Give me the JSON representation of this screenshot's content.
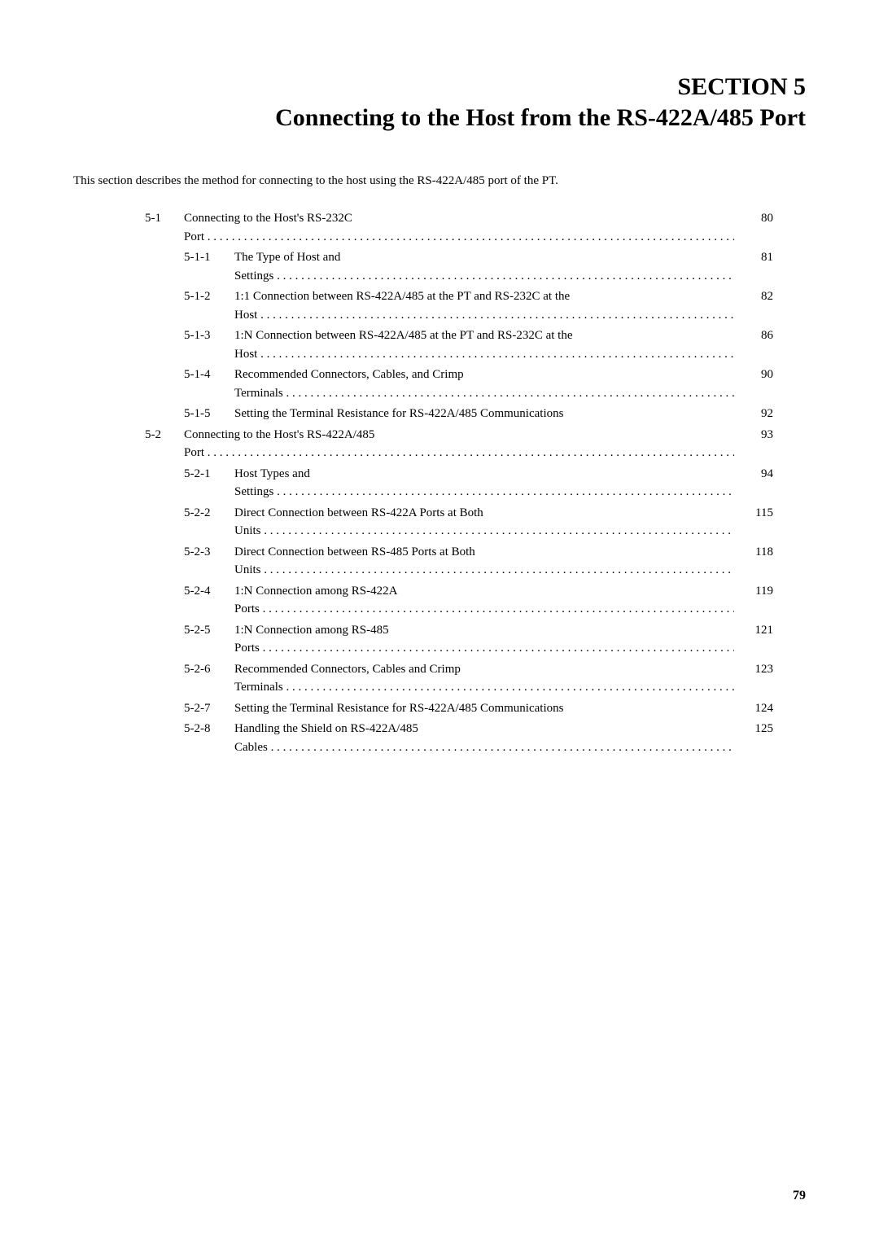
{
  "header": {
    "section_number": "SECTION 5",
    "section_title": "Connecting to the Host from the RS-422A/485 Port"
  },
  "intro": "This section describes the method for connecting to the host using the RS-422A/485 port of the PT.",
  "toc": [
    {
      "level": 1,
      "num": "5-1",
      "title": "Connecting to the Host's RS-232C Port",
      "page": "80",
      "dots": true
    },
    {
      "level": 2,
      "num": "5-1-1",
      "title": "The Type of Host and Settings",
      "page": "81",
      "dots": true
    },
    {
      "level": 2,
      "num": "5-1-2",
      "title": "1:1 Connection between RS-422A/485 at the PT and RS-232C at the Host",
      "page": "82",
      "dots": true
    },
    {
      "level": 2,
      "num": "5-1-3",
      "title": "1:N Connection between RS-422A/485 at the PT and RS-232C at the Host",
      "page": "86",
      "dots": true
    },
    {
      "level": 2,
      "num": "5-1-4",
      "title": "Recommended Connectors, Cables, and Crimp Terminals",
      "page": "90",
      "dots": true
    },
    {
      "level": 2,
      "num": "5-1-5",
      "title": "Setting the Terminal Resistance for RS-422A/485 Communications",
      "page": "92",
      "dots": false
    },
    {
      "level": 1,
      "num": "5-2",
      "title": "Connecting to the Host's RS-422A/485 Port",
      "page": "93",
      "dots": true
    },
    {
      "level": 2,
      "num": "5-2-1",
      "title": "Host Types and Settings",
      "page": "94",
      "dots": true
    },
    {
      "level": 2,
      "num": "5-2-2",
      "title": "Direct Connection between RS-422A Ports at Both Units",
      "page": "115",
      "dots": true
    },
    {
      "level": 2,
      "num": "5-2-3",
      "title": "Direct Connection between RS-485 Ports at Both Units",
      "page": "118",
      "dots": true
    },
    {
      "level": 2,
      "num": "5-2-4",
      "title": "1:N Connection among RS-422A Ports",
      "page": "119",
      "dots": true
    },
    {
      "level": 2,
      "num": "5-2-5",
      "title": "1:N Connection among RS-485 Ports",
      "page": "121",
      "dots": true
    },
    {
      "level": 2,
      "num": "5-2-6",
      "title": "Recommended Connectors, Cables and Crimp Terminals",
      "page": "123",
      "dots": true
    },
    {
      "level": 2,
      "num": "5-2-7",
      "title": "Setting the Terminal Resistance for RS-422A/485 Communications",
      "page": "124",
      "dots": false
    },
    {
      "level": 2,
      "num": "5-2-8",
      "title": "Handling the Shield on RS-422A/485 Cables",
      "page": "125",
      "dots": true
    }
  ],
  "page_number": "79"
}
